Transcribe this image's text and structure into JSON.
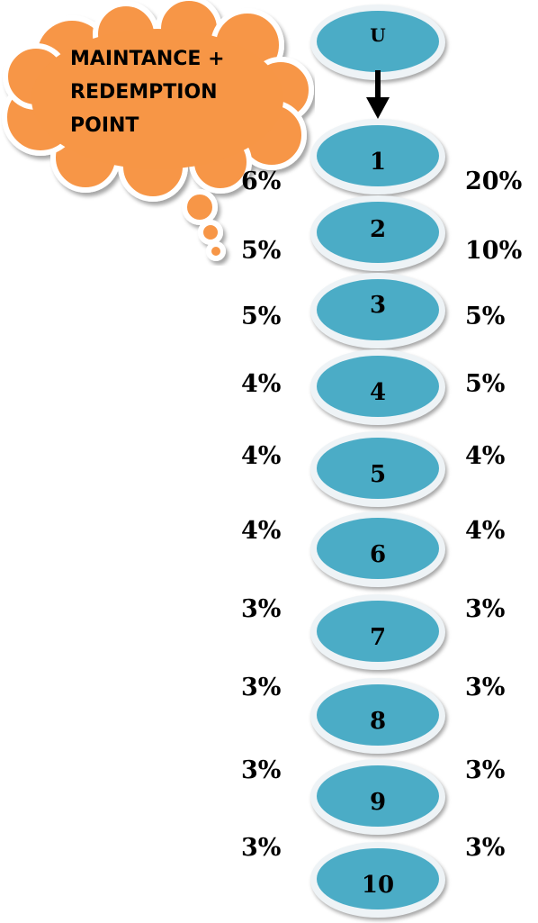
{
  "callout": {
    "lines": [
      "MAINTANCE +",
      "REDEMPTION",
      "POINT"
    ],
    "fill_color": "#f79646"
  },
  "top_node": {
    "label": "U"
  },
  "levels": [
    {
      "label": "1",
      "left_pct": "6%",
      "right_pct": "20%"
    },
    {
      "label": "2",
      "left_pct": "5%",
      "right_pct": "10%"
    },
    {
      "label": "3",
      "left_pct": "5%",
      "right_pct": "5%"
    },
    {
      "label": "4",
      "left_pct": "4%",
      "right_pct": "5%"
    },
    {
      "label": "5",
      "left_pct": "4%",
      "right_pct": "4%"
    },
    {
      "label": "6",
      "left_pct": "4%",
      "right_pct": "4%"
    },
    {
      "label": "7",
      "left_pct": "3%",
      "right_pct": "3%"
    },
    {
      "label": "8",
      "left_pct": "3%",
      "right_pct": "3%"
    },
    {
      "label": "9",
      "left_pct": "3%",
      "right_pct": "3%"
    },
    {
      "label": "10",
      "left_pct": "3%",
      "right_pct": "3%"
    }
  ],
  "colors": {
    "node_fill": "#4bacc6",
    "node_rim": "#eef3f6",
    "callout_fill": "#f79646"
  }
}
